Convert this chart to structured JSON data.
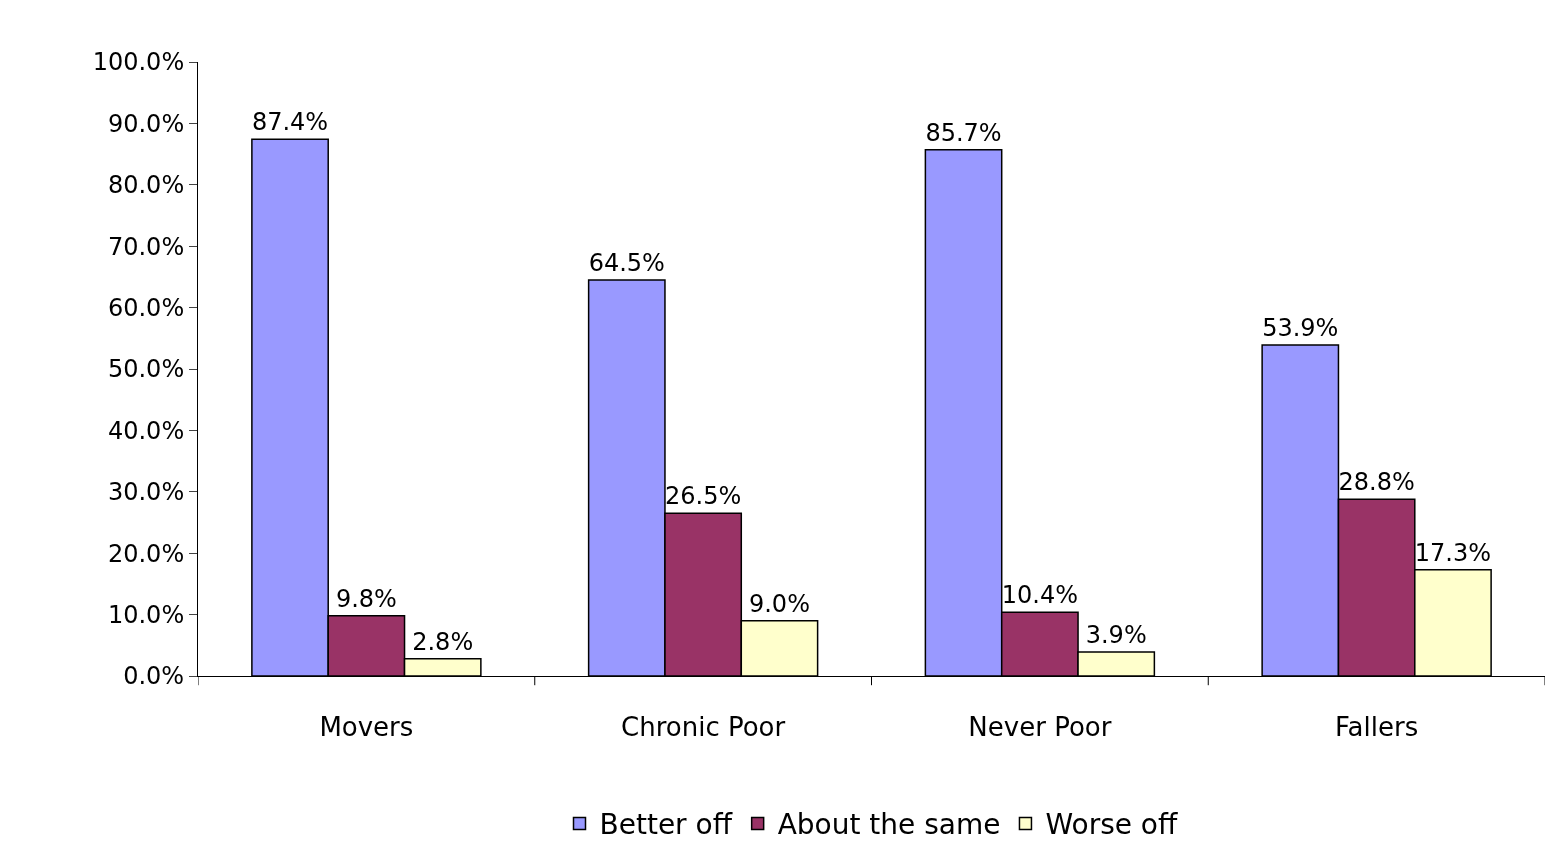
{
  "chart_data": {
    "type": "bar",
    "categories": [
      "Movers",
      "Chronic Poor",
      "Never Poor",
      "Fallers"
    ],
    "series": [
      {
        "name": "Better off",
        "color": "#9999ff",
        "values": [
          87.4,
          64.5,
          85.7,
          53.9
        ],
        "value_labels": [
          "87.4%",
          "64.5%",
          "85.7%",
          "53.9%"
        ]
      },
      {
        "name": "About the same",
        "color": "#993366",
        "values": [
          9.8,
          26.5,
          10.4,
          28.8
        ],
        "value_labels": [
          "9.8%",
          "26.5%",
          "10.4%",
          "28.8%"
        ]
      },
      {
        "name": "Worse off",
        "color": "#ffffcc",
        "values": [
          2.8,
          9.0,
          3.9,
          17.3
        ],
        "value_labels": [
          "2.8%",
          "9.0%",
          "3.9%",
          "17.3%"
        ]
      }
    ],
    "ylim": [
      0,
      100
    ],
    "yticks": [
      {
        "value": 0,
        "label": "0.0%"
      },
      {
        "value": 10,
        "label": "10.0%"
      },
      {
        "value": 20,
        "label": "20.0%"
      },
      {
        "value": 30,
        "label": "30.0%"
      },
      {
        "value": 40,
        "label": "40.0%"
      },
      {
        "value": 50,
        "label": "50.0%"
      },
      {
        "value": 60,
        "label": "60.0%"
      },
      {
        "value": 70,
        "label": "70.0%"
      },
      {
        "value": 80,
        "label": "80.0%"
      },
      {
        "value": 90,
        "label": "90.0%"
      },
      {
        "value": 100,
        "label": "100.0%"
      }
    ],
    "legend": "bottom"
  }
}
